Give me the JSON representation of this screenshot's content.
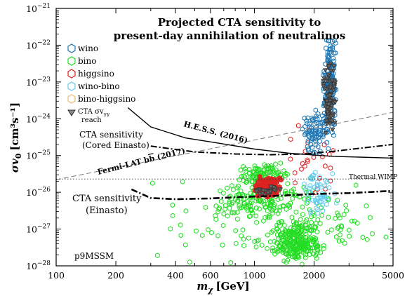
{
  "chart_data": {
    "type": "scatter",
    "title_line1": "Projected CTA sensitivity to",
    "title_line2": "present-day annihilation of neutralinos",
    "xlabel_main": "m",
    "xlabel_sub": "χ",
    "xlabel_unit": "[GeV]",
    "ylabel_main": "σv",
    "ylabel_sub": "0",
    "ylabel_unit": "[cm³s⁻¹]",
    "x_scale": "log",
    "y_scale": "log",
    "xlim": [
      100,
      5000
    ],
    "ylim": [
      1e-28,
      1e-21
    ],
    "x_ticks": [
      {
        "value": 100,
        "label": "100"
      },
      {
        "value": 200,
        "label": "200"
      },
      {
        "value": 400,
        "label": "400"
      },
      {
        "value": 600,
        "label": "600"
      },
      {
        "value": 1000,
        "label": "1000"
      },
      {
        "value": 2000,
        "label": "2000"
      },
      {
        "value": 5000,
        "label": "5000"
      }
    ],
    "y_ticks": [
      {
        "value": 1e-28,
        "mant": "10",
        "exp": "−28"
      },
      {
        "value": 1e-27,
        "mant": "10",
        "exp": "−27"
      },
      {
        "value": 1e-26,
        "mant": "10",
        "exp": "−26"
      },
      {
        "value": 1e-25,
        "mant": "10",
        "exp": "−25"
      },
      {
        "value": 1e-24,
        "mant": "10",
        "exp": "−24"
      },
      {
        "value": 1e-23,
        "mant": "10",
        "exp": "−23"
      },
      {
        "value": 1e-22,
        "mant": "10",
        "exp": "−22"
      },
      {
        "value": 1e-21,
        "mant": "10",
        "exp": "−21"
      }
    ],
    "legend_position": "top-left",
    "legend": [
      {
        "label": "wino",
        "color": "#1f77b4"
      },
      {
        "label": "bino",
        "color": "#22dd22"
      },
      {
        "label": "higgsino",
        "color": "#dd2222"
      },
      {
        "label": "wino-bino",
        "color": "#66ccee"
      },
      {
        "label": "bino-higgsino",
        "color": "#e8c070"
      },
      {
        "label_line1": "CTA σv",
        "label_sub": "γγ",
        "label_line2": "reach",
        "color": "#333333"
      }
    ],
    "annotations": {
      "hess": "H.E.S.S. (2016)",
      "cta_cored_line1": "CTA sensitivity",
      "cta_cored_line2": "(Cored Einasto)",
      "fermi": "Fermi-LAT b",
      "fermi_b2": "b",
      "fermi_year": " (2017)",
      "thermal": "Thermal WIMP",
      "cta_einasto_line1": "CTA sensitivity",
      "cta_einasto_line2": "(Einasto)",
      "model": "p9MSSM"
    },
    "curves": {
      "hess": {
        "style": "solid",
        "points": [
          [
            230,
            2e-24
          ],
          [
            300,
            6e-25
          ],
          [
            450,
            3e-25
          ],
          [
            650,
            2.2e-25
          ],
          [
            1000,
            1.5e-25
          ],
          [
            1500,
            1.15e-25
          ],
          [
            2500,
            9.5e-26
          ],
          [
            5000,
            8.5e-26
          ]
        ]
      },
      "fermi": {
        "style": "dashed",
        "points": [
          [
            100,
            2.2e-26
          ],
          [
            5000,
            1.5e-24
          ]
        ]
      },
      "thermal": {
        "style": "dotted",
        "points": [
          [
            100,
            2.3e-26
          ],
          [
            5000,
            2.3e-26
          ]
        ]
      },
      "cta_cored": {
        "style": "dashdot",
        "points": [
          [
            300,
            1.8e-25
          ],
          [
            500,
            1.25e-25
          ],
          [
            800,
            1.1e-25
          ],
          [
            1200,
            1.05e-25
          ],
          [
            1800,
            1.1e-25
          ],
          [
            2500,
            1.3e-25
          ],
          [
            3500,
            1.6e-25
          ],
          [
            5000,
            2e-25
          ]
        ]
      },
      "cta_einasto": {
        "style": "dashdot",
        "points": [
          [
            240,
            1.2e-26
          ],
          [
            300,
            7e-27
          ],
          [
            400,
            6.5e-27
          ],
          [
            600,
            6.8e-27
          ],
          [
            900,
            7.5e-27
          ],
          [
            1300,
            8e-27
          ],
          [
            2000,
            9e-27
          ],
          [
            3000,
            9.5e-27
          ],
          [
            5000,
            1.1e-26
          ]
        ]
      }
    },
    "clusters": [
      {
        "name": "bino",
        "color": "#22dd22",
        "shape": "hexagon",
        "regions": [
          {
            "x": [
              300,
              5000
            ],
            "y": [
              1e-28,
              3e-26
            ],
            "n": 160
          },
          {
            "x": [
              800,
              1500
            ],
            "y": [
              1e-26,
              8e-26
            ],
            "n": 110
          },
          {
            "x": [
              1200,
              2200
            ],
            "y": [
              1e-28,
              2e-27
            ],
            "n": 240
          },
          {
            "x": [
              600,
              2000
            ],
            "y": [
              2e-27,
              2e-26
            ],
            "n": 120
          }
        ]
      },
      {
        "name": "higgsino",
        "color": "#dd2222",
        "shape": "hexagon",
        "regions": [
          {
            "x": [
              1000,
              1400
            ],
            "y": [
              7e-27,
              3e-26
            ],
            "n": 110
          },
          {
            "x": [
              1400,
              3000
            ],
            "y": [
              5e-27,
              8e-25
            ],
            "n": 25
          }
        ]
      },
      {
        "name": "wino",
        "color": "#1f77b4",
        "shape": "hexagon",
        "regions": [
          {
            "x": [
              2200,
              2600
            ],
            "y": [
              3e-25,
              2e-22
            ],
            "n": 200
          },
          {
            "x": [
              1700,
              2400
            ],
            "y": [
              9e-26,
              2e-24
            ],
            "n": 80
          }
        ]
      },
      {
        "name": "wino-bino",
        "color": "#66ccee",
        "shape": "hexagon",
        "regions": [
          {
            "x": [
              1700,
              2600
            ],
            "y": [
              2e-27,
              6e-26
            ],
            "n": 60
          }
        ]
      },
      {
        "name": "CTA reach",
        "color": "#333333",
        "shape": "triangle",
        "regions": [
          {
            "x": [
              2200,
              2600
            ],
            "y": [
              3e-25,
              5e-23
            ],
            "n": 90
          },
          {
            "x": [
              1000,
              1400
            ],
            "y": [
              8e-27,
              1.6e-26
            ],
            "n": 25
          }
        ]
      }
    ]
  }
}
